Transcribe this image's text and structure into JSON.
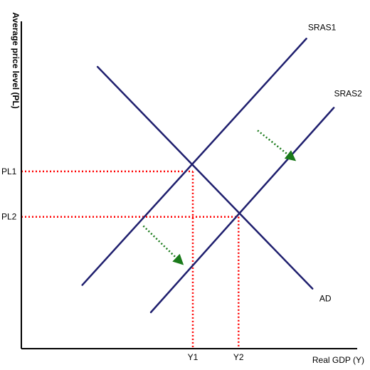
{
  "chart_data": {
    "type": "line",
    "title": "",
    "xlabel": "Real GDP (Y)",
    "ylabel": "Average price level (PL)",
    "x_ticks": [
      "Y1",
      "Y2"
    ],
    "y_ticks": [
      "PL1",
      "PL2"
    ],
    "series": [
      {
        "name": "SRAS1",
        "color": "#1f1f6e",
        "points": [
          [
            0.8,
            0.7
          ],
          [
            3.74,
            3.41
          ]
        ]
      },
      {
        "name": "SRAS2",
        "color": "#1f1f6e",
        "points": [
          [
            1.7,
            0.4
          ],
          [
            4.1,
            2.65
          ]
        ]
      },
      {
        "name": "AD",
        "color": "#1f1f6e",
        "points": [
          [
            1.0,
            3.1
          ],
          [
            3.82,
            0.66
          ]
        ]
      }
    ],
    "equilibria": [
      {
        "x_label": "Y1",
        "y_label": "PL1",
        "x": 2.25,
        "y": 1.95
      },
      {
        "x_label": "Y2",
        "y_label": "PL2",
        "x": 2.85,
        "y": 1.45
      }
    ],
    "shift_arrows": [
      {
        "from": [
          3.1,
          2.4
        ],
        "to": [
          3.55,
          2.1
        ],
        "color": "#1a7a1a"
      },
      {
        "from": [
          1.6,
          1.35
        ],
        "to": [
          2.08,
          0.96
        ],
        "color": "#1a7a1a"
      }
    ],
    "guide_color": "#ff0000",
    "axis_color": "#000000",
    "xlim": [
      0,
      4.5
    ],
    "ylim": [
      0,
      3.6
    ]
  }
}
